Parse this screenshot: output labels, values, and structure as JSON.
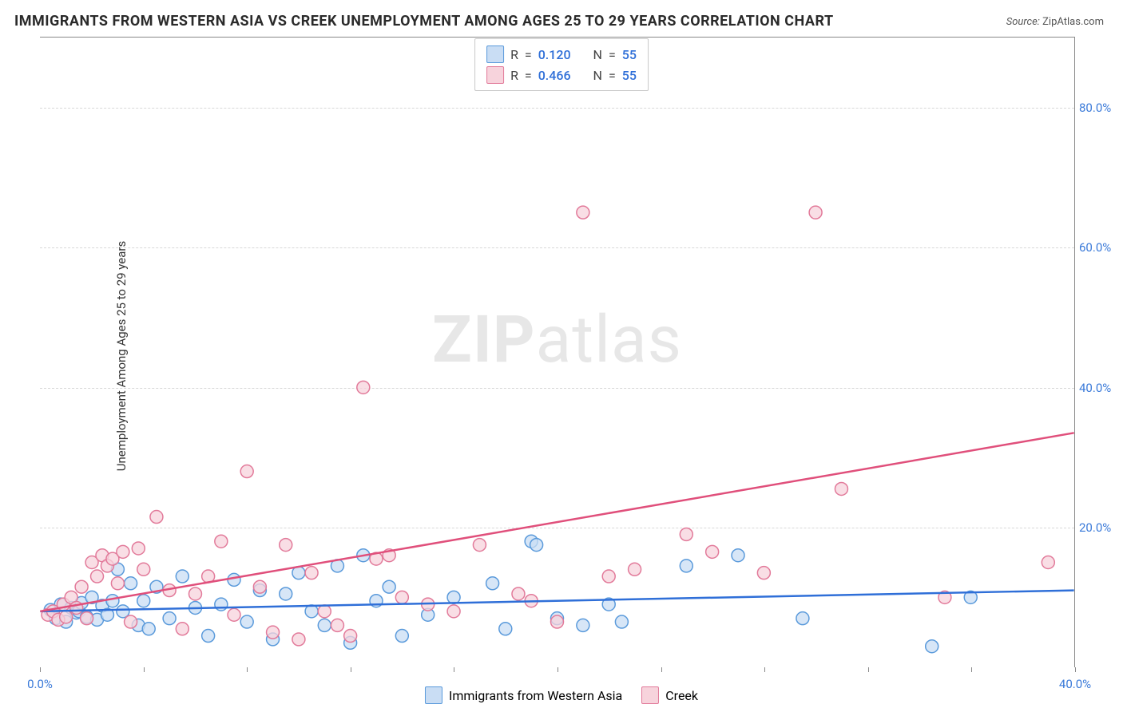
{
  "title": "IMMIGRANTS FROM WESTERN ASIA VS CREEK UNEMPLOYMENT AMONG AGES 25 TO 29 YEARS CORRELATION CHART",
  "source_label": "Source:",
  "source_value": "ZipAtlas.com",
  "y_axis_label": "Unemployment Among Ages 25 to 29 years",
  "watermark": {
    "part1": "ZIP",
    "part2": "atlas"
  },
  "chart": {
    "type": "scatter",
    "background_color": "#ffffff",
    "grid_color": "#d8d8d8",
    "axis_color": "#888888",
    "xlim": [
      0,
      40
    ],
    "ylim": [
      0,
      90
    ],
    "x_ticks": [
      0,
      4,
      8,
      12,
      16,
      20,
      24,
      28,
      32,
      36,
      40
    ],
    "x_tick_labels": {
      "0": "0.0%",
      "40": "40.0%"
    },
    "y_gridlines": [
      20,
      40,
      60,
      80
    ],
    "y_tick_labels": {
      "20": "20.0%",
      "40": "40.0%",
      "60": "60.0%",
      "80": "80.0%"
    },
    "marker_radius": 8,
    "marker_stroke_width": 1.5,
    "trend_line_width": 2.5,
    "series": [
      {
        "id": "immigrants",
        "name": "Immigrants from Western Asia",
        "fill": "#c9ddf4",
        "stroke": "#5a9adb",
        "line_color": "#2f6fd8",
        "R": "0.120",
        "N": "55",
        "trend": {
          "x1": 0,
          "y1": 8.0,
          "x2": 40,
          "y2": 11.0
        },
        "points": [
          [
            0.4,
            8.2
          ],
          [
            0.6,
            7.0
          ],
          [
            0.8,
            9.0
          ],
          [
            1.0,
            6.5
          ],
          [
            1.2,
            8.5
          ],
          [
            1.4,
            7.8
          ],
          [
            1.5,
            8.0
          ],
          [
            1.6,
            9.2
          ],
          [
            1.8,
            7.2
          ],
          [
            2.0,
            10.0
          ],
          [
            2.2,
            6.8
          ],
          [
            2.4,
            8.8
          ],
          [
            2.6,
            7.5
          ],
          [
            2.8,
            9.5
          ],
          [
            3.0,
            14.0
          ],
          [
            3.2,
            8.0
          ],
          [
            3.5,
            12.0
          ],
          [
            3.8,
            6.0
          ],
          [
            4.0,
            9.5
          ],
          [
            4.2,
            5.5
          ],
          [
            4.5,
            11.5
          ],
          [
            5.0,
            7.0
          ],
          [
            5.5,
            13.0
          ],
          [
            6.0,
            8.5
          ],
          [
            6.5,
            4.5
          ],
          [
            7.0,
            9.0
          ],
          [
            7.5,
            12.5
          ],
          [
            8.0,
            6.5
          ],
          [
            8.5,
            11.0
          ],
          [
            9.0,
            4.0
          ],
          [
            9.5,
            10.5
          ],
          [
            10.0,
            13.5
          ],
          [
            10.5,
            8.0
          ],
          [
            11.0,
            6.0
          ],
          [
            11.5,
            14.5
          ],
          [
            12.0,
            3.5
          ],
          [
            12.5,
            16.0
          ],
          [
            13.0,
            9.5
          ],
          [
            13.5,
            11.5
          ],
          [
            14.0,
            4.5
          ],
          [
            15.0,
            7.5
          ],
          [
            16.0,
            10.0
          ],
          [
            17.5,
            12.0
          ],
          [
            18.0,
            5.5
          ],
          [
            19.0,
            18.0
          ],
          [
            19.2,
            17.5
          ],
          [
            20.0,
            7.0
          ],
          [
            21.0,
            6.0
          ],
          [
            22.0,
            9.0
          ],
          [
            22.5,
            6.5
          ],
          [
            25.0,
            14.5
          ],
          [
            27.0,
            16.0
          ],
          [
            29.5,
            7.0
          ],
          [
            34.5,
            3.0
          ],
          [
            36.0,
            10.0
          ]
        ]
      },
      {
        "id": "creek",
        "name": "Creek",
        "fill": "#f7d3dc",
        "stroke": "#e27a9a",
        "line_color": "#e04f7b",
        "R": "0.466",
        "N": "55",
        "trend": {
          "x1": 0,
          "y1": 8.0,
          "x2": 40,
          "y2": 33.5
        },
        "points": [
          [
            0.3,
            7.5
          ],
          [
            0.5,
            8.0
          ],
          [
            0.7,
            6.8
          ],
          [
            0.9,
            9.0
          ],
          [
            1.0,
            7.2
          ],
          [
            1.2,
            10.0
          ],
          [
            1.4,
            8.5
          ],
          [
            1.6,
            11.5
          ],
          [
            1.8,
            7.0
          ],
          [
            2.0,
            15.0
          ],
          [
            2.2,
            13.0
          ],
          [
            2.4,
            16.0
          ],
          [
            2.6,
            14.5
          ],
          [
            2.8,
            15.5
          ],
          [
            3.0,
            12.0
          ],
          [
            3.2,
            16.5
          ],
          [
            3.5,
            6.5
          ],
          [
            3.8,
            17.0
          ],
          [
            4.0,
            14.0
          ],
          [
            4.5,
            21.5
          ],
          [
            5.0,
            11.0
          ],
          [
            5.5,
            5.5
          ],
          [
            6.0,
            10.5
          ],
          [
            6.5,
            13.0
          ],
          [
            7.0,
            18.0
          ],
          [
            7.5,
            7.5
          ],
          [
            8.0,
            28.0
          ],
          [
            8.5,
            11.5
          ],
          [
            9.0,
            5.0
          ],
          [
            9.5,
            17.5
          ],
          [
            10.0,
            4.0
          ],
          [
            10.5,
            13.5
          ],
          [
            11.0,
            8.0
          ],
          [
            11.5,
            6.0
          ],
          [
            12.0,
            4.5
          ],
          [
            12.5,
            40.0
          ],
          [
            13.0,
            15.5
          ],
          [
            13.5,
            16.0
          ],
          [
            14.0,
            10.0
          ],
          [
            15.0,
            9.0
          ],
          [
            16.0,
            8.0
          ],
          [
            17.0,
            17.5
          ],
          [
            18.5,
            10.5
          ],
          [
            19.0,
            9.5
          ],
          [
            20.0,
            6.5
          ],
          [
            21.0,
            65.0
          ],
          [
            22.0,
            13.0
          ],
          [
            23.0,
            14.0
          ],
          [
            25.0,
            19.0
          ],
          [
            26.0,
            16.5
          ],
          [
            28.0,
            13.5
          ],
          [
            30.0,
            65.0
          ],
          [
            31.0,
            25.5
          ],
          [
            35.0,
            10.0
          ],
          [
            39.0,
            15.0
          ]
        ]
      }
    ]
  },
  "legend_top": {
    "R_label": "R",
    "N_label": "N",
    "eq": "="
  },
  "colors": {
    "title": "#2a2a2a",
    "axis_label_blue": "#3a7ad9"
  }
}
